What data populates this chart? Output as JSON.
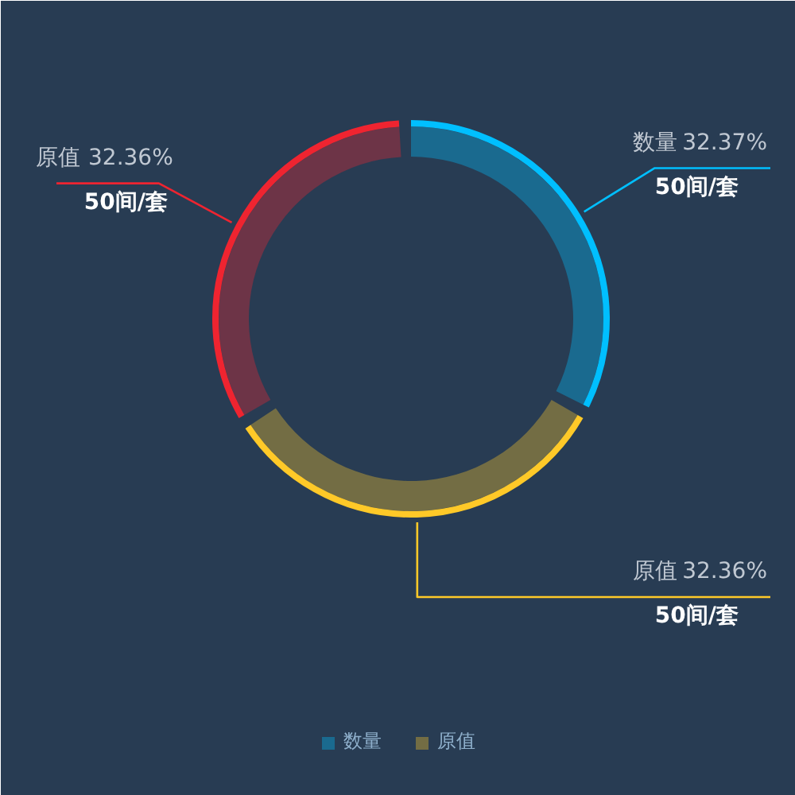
{
  "chart_data": {
    "type": "donut",
    "categories": [
      "数量",
      "原值",
      "原值"
    ],
    "values": [
      50,
      50,
      50
    ],
    "colors": [
      "#00bfff",
      "#ffc928",
      "#ef2430"
    ],
    "value_labels": [
      "50间/套",
      "50间/套",
      "50间/套"
    ],
    "annotations": [
      "32.37%",
      "32.36%",
      "32.36%"
    ],
    "legend": "bottom"
  }
}
